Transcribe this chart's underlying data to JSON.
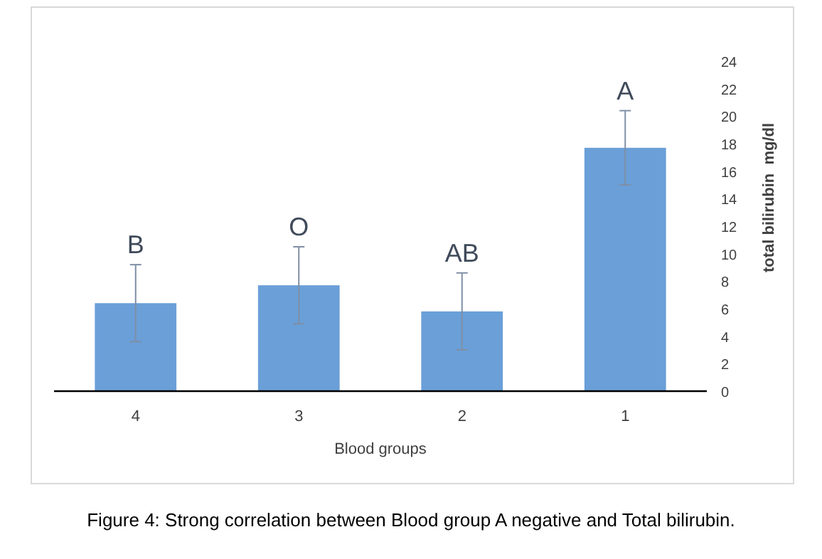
{
  "chart_data": {
    "type": "bar",
    "xlabel": "Blood groups",
    "ylabel": "total bilirubin  mg/dl",
    "categories": [
      "4",
      "3",
      "2",
      "1"
    ],
    "values": [
      6.4,
      7.7,
      5.8,
      17.7
    ],
    "errors": [
      2.8,
      2.8,
      2.8,
      2.7
    ],
    "color": "#6a9fd8",
    "ylim": [
      0,
      24
    ],
    "yticks": [
      0,
      2,
      4,
      6,
      8,
      10,
      12,
      14,
      16,
      18,
      20,
      22,
      24
    ],
    "grid": false,
    "annotations": [
      {
        "text": "B",
        "x": "4",
        "y": 9.2
      },
      {
        "text": "O",
        "x": "3",
        "y": 10.5
      },
      {
        "text": "AB",
        "x": "2",
        "y": 8.6
      },
      {
        "text": "A",
        "x": "1",
        "y": 20.4
      },
      "Figure 4: Strong correlation between Blood group A negative and Total bilirubin."
    ]
  }
}
